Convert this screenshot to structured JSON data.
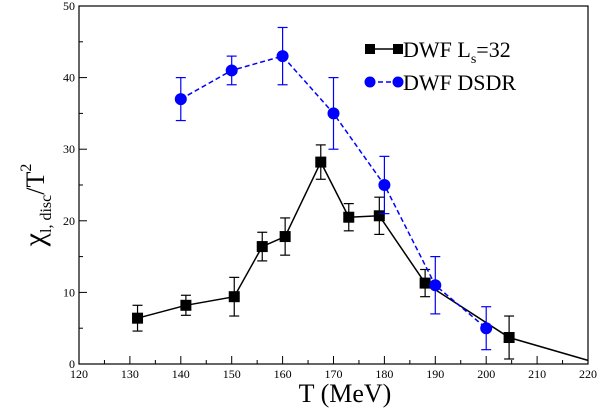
{
  "chart_data": {
    "type": "line",
    "xlabel": "T (MeV)",
    "ylabel_main": "χ",
    "ylabel_sub": "l, disc",
    "ylabel_rest": "/T",
    "ylabel_sup": "2",
    "xlim": [
      120,
      220
    ],
    "ylim": [
      0,
      50
    ],
    "xticks": [
      120,
      130,
      140,
      150,
      160,
      170,
      180,
      190,
      200,
      210,
      220
    ],
    "yticks": [
      0,
      10,
      20,
      30,
      40,
      50
    ],
    "grid": false,
    "legend_position": "top-right",
    "series": [
      {
        "name": "DWF L_s=32",
        "legend_main": "DWF L",
        "legend_sub": "s",
        "legend_rest": "=32",
        "color": "#000000",
        "marker": "square",
        "line_style": "solid",
        "points": [
          {
            "x": 131.5,
            "y": 6.4,
            "err": 1.8
          },
          {
            "x": 141,
            "y": 8.2,
            "err": 1.4
          },
          {
            "x": 150.5,
            "y": 9.4,
            "err": 2.7
          },
          {
            "x": 156,
            "y": 16.4,
            "err": 2.0
          },
          {
            "x": 160.5,
            "y": 17.8,
            "err": 2.6
          },
          {
            "x": 167.5,
            "y": 28.2,
            "err": 2.4
          },
          {
            "x": 173,
            "y": 20.5,
            "err": 1.9
          },
          {
            "x": 179,
            "y": 20.7,
            "err": 2.6
          },
          {
            "x": 188,
            "y": 11.3,
            "err": 1.9
          },
          {
            "x": 204.5,
            "y": 3.7,
            "err": 3.0
          }
        ],
        "line_extension": [
          {
            "x": 220,
            "y": 0.5
          }
        ]
      },
      {
        "name": "DWF DSDR",
        "legend_main": "DWF DSDR",
        "color": "#0000ff",
        "marker": "circle",
        "line_style": "dashed",
        "points": [
          {
            "x": 140,
            "y": 37,
            "err": 3
          },
          {
            "x": 150,
            "y": 41,
            "err": 2
          },
          {
            "x": 160,
            "y": 43,
            "err": 4
          },
          {
            "x": 170,
            "y": 35,
            "err": 5
          },
          {
            "x": 180,
            "y": 25,
            "err": 4
          },
          {
            "x": 190,
            "y": 11,
            "err": 4
          },
          {
            "x": 200,
            "y": 5,
            "err": 3
          }
        ]
      }
    ]
  }
}
